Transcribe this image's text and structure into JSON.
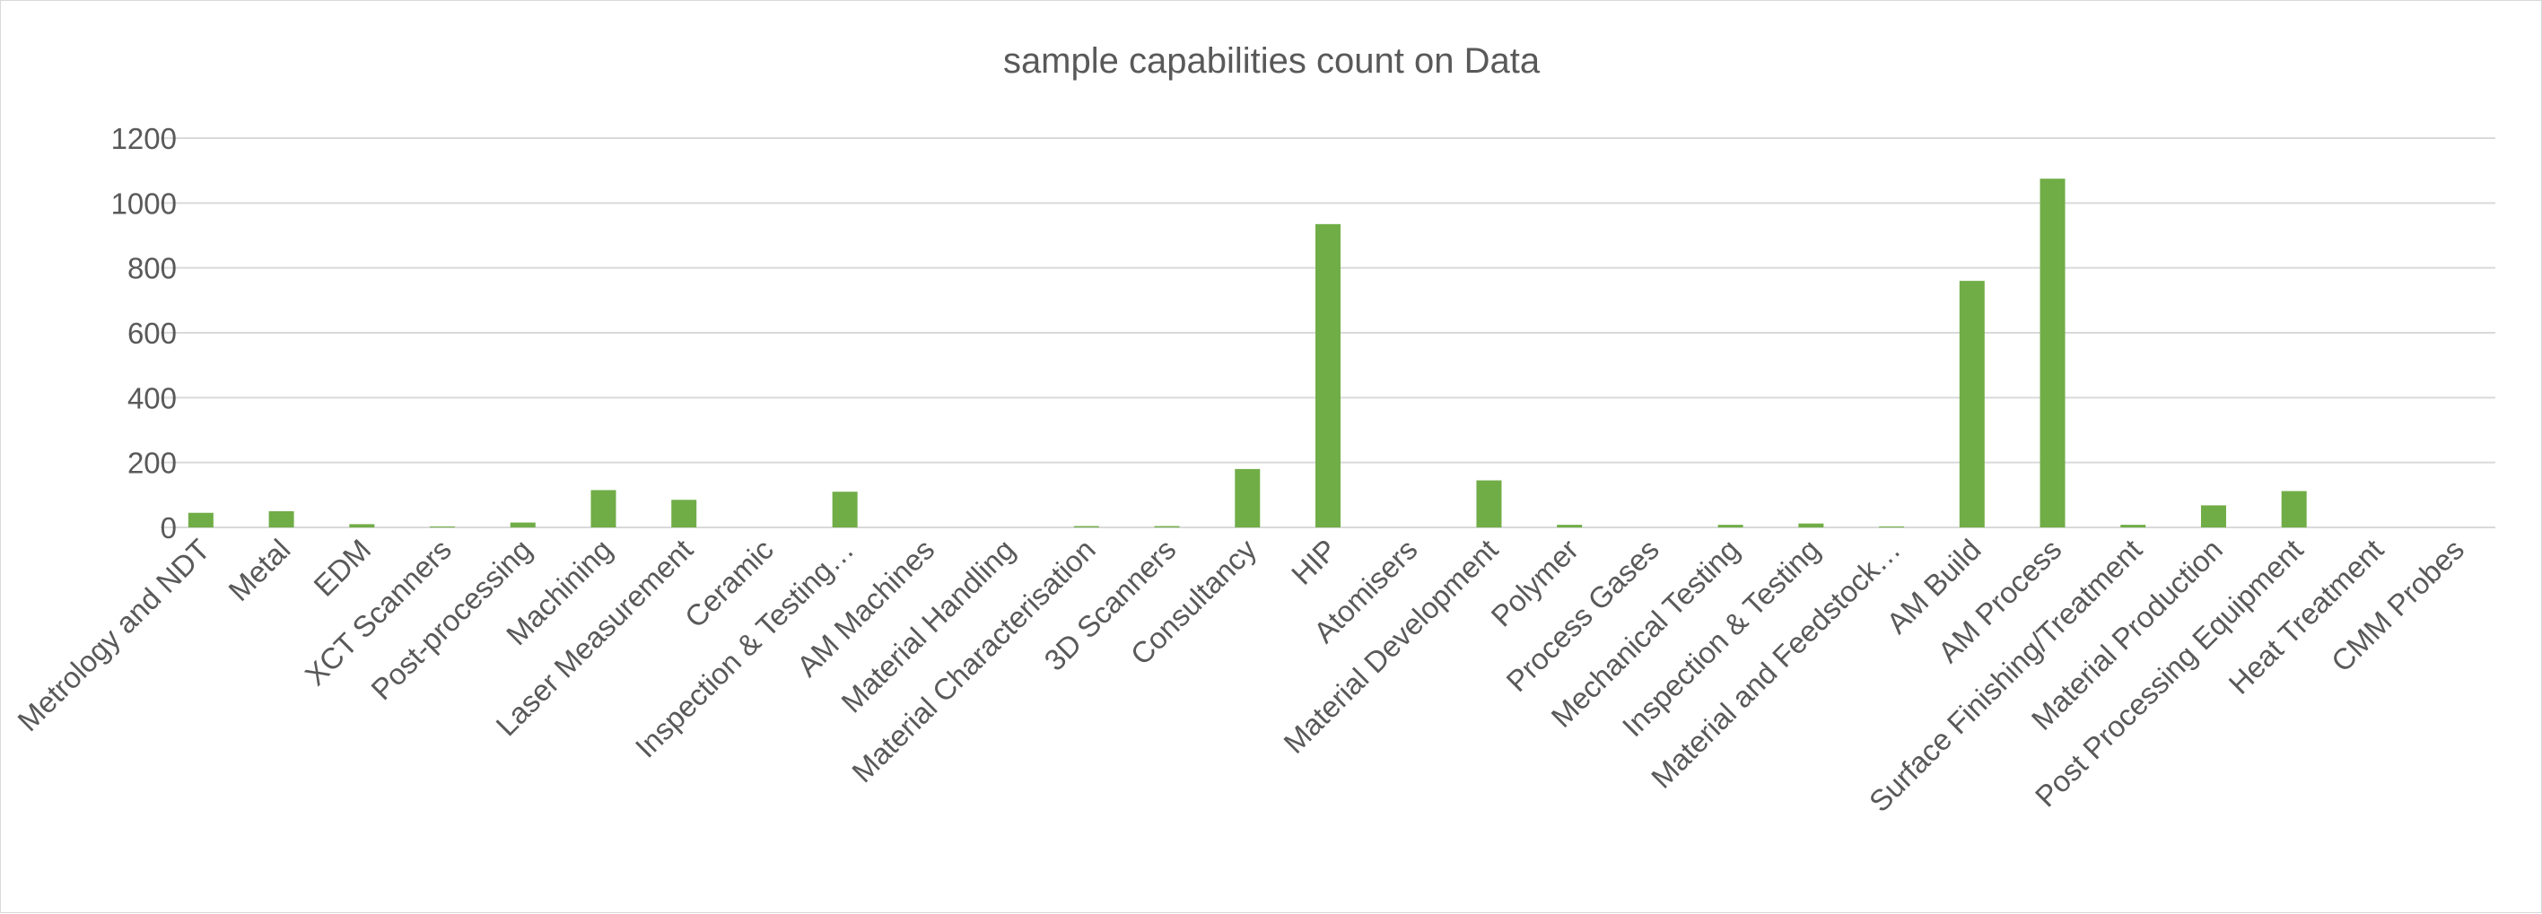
{
  "chart_data": {
    "type": "bar",
    "title": "sample capabilities count on Data",
    "xlabel": "",
    "ylabel": "",
    "ylim": [
      0,
      1200
    ],
    "yticks": [
      "0",
      "200",
      "400",
      "600",
      "800",
      "1000",
      "1200"
    ],
    "grid": true,
    "legend": "none",
    "bar_color": "#70ad47",
    "categories": [
      "Metrology and NDT",
      "Metal",
      "EDM",
      "XCT Scanners",
      "Post-processing",
      "Machining",
      "Laser Measurement",
      "Ceramic",
      "Inspection & Testing…",
      "AM Machines",
      "Material Handling",
      "Material Characterisation",
      "3D Scanners",
      "Consultancy",
      "HIP",
      "Atomisers",
      "Material Development",
      "Polymer",
      "Process Gases",
      "Mechanical Testing",
      "Inspection & Testing",
      "Material and Feedstock…",
      "AM Build",
      "AM Process",
      "Surface Finishing/Treatment",
      "Material Production",
      "Post Processing Equipment",
      "Heat Treatment",
      "CMM Probes"
    ],
    "values": [
      45,
      50,
      10,
      3,
      15,
      115,
      85,
      0,
      110,
      0,
      0,
      4,
      4,
      180,
      935,
      0,
      145,
      8,
      0,
      8,
      12,
      3,
      760,
      1075,
      8,
      68,
      112,
      0,
      0
    ]
  }
}
